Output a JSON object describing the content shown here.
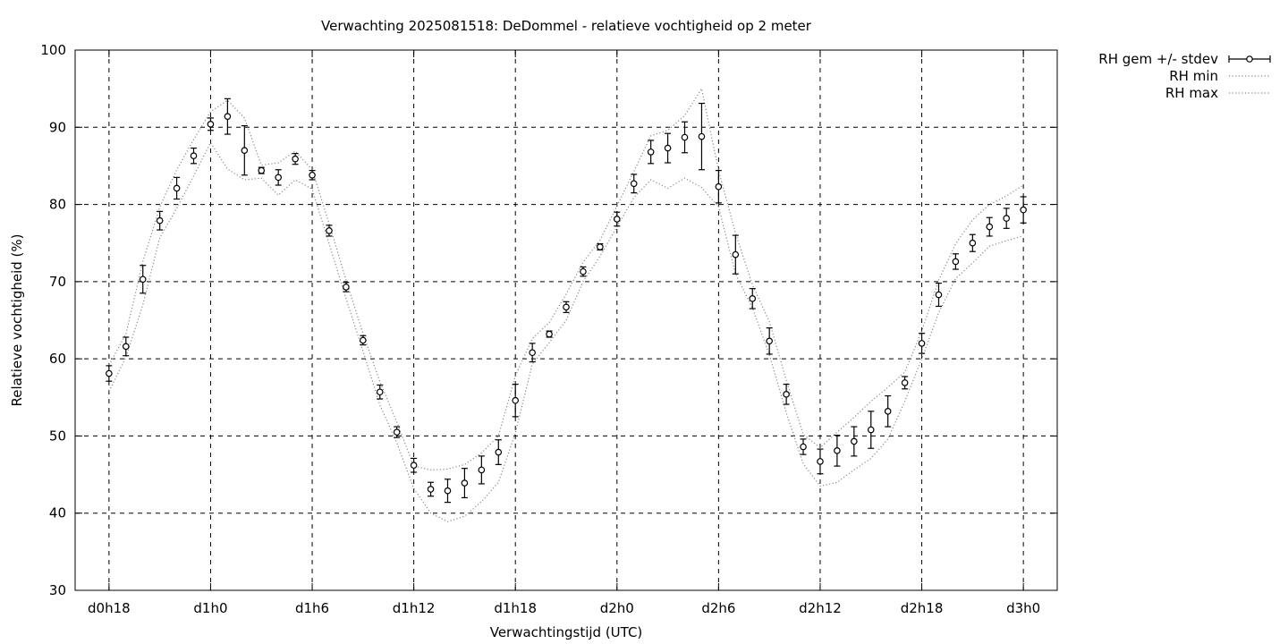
{
  "chart_data": {
    "type": "line",
    "title": "Verwachting 2025081518: DeDommel - relatieve vochtigheid op 2 meter",
    "xlabel": "Verwachtingstijd (UTC)",
    "ylabel": "Relatieve vochtigheid (%)",
    "x_unit": "forecast hours since 2025081518",
    "xlim": [
      -2,
      56
    ],
    "ylim": [
      30,
      100
    ],
    "yticks": [
      30,
      40,
      50,
      60,
      70,
      80,
      90,
      100
    ],
    "xticks": [
      {
        "x": 0,
        "label": "d0h18"
      },
      {
        "x": 6,
        "label": "d1h0"
      },
      {
        "x": 12,
        "label": "d1h6"
      },
      {
        "x": 18,
        "label": "d1h12"
      },
      {
        "x": 24,
        "label": "d1h18"
      },
      {
        "x": 30,
        "label": "d2h0"
      },
      {
        "x": 36,
        "label": "d2h6"
      },
      {
        "x": 42,
        "label": "d2h12"
      },
      {
        "x": 48,
        "label": "d2h18"
      },
      {
        "x": 54,
        "label": "d3h0"
      }
    ],
    "grid": true,
    "legend_position": "outside top-right",
    "series": [
      {
        "name": "RH gem +/- stdev",
        "style": "errorbars",
        "x": [
          0,
          1,
          2,
          3,
          4,
          5,
          6,
          7,
          8,
          9,
          10,
          11,
          12,
          13,
          14,
          15,
          16,
          17,
          18,
          19,
          20,
          21,
          22,
          23,
          24,
          25,
          26,
          27,
          28,
          29,
          30,
          31,
          32,
          33,
          34,
          35,
          36,
          37,
          38,
          39,
          40,
          41,
          42,
          43,
          44,
          45,
          46,
          47,
          48,
          49,
          50,
          51,
          52,
          53,
          54
        ],
        "mean": [
          58.1,
          61.6,
          70.3,
          77.9,
          82.1,
          86.3,
          90.4,
          91.4,
          87.0,
          84.4,
          83.5,
          85.9,
          83.8,
          76.6,
          69.3,
          62.4,
          55.7,
          50.5,
          46.2,
          43.1,
          42.9,
          43.9,
          45.6,
          47.9,
          54.6,
          60.8,
          63.2,
          66.7,
          71.3,
          74.5,
          78.1,
          82.7,
          86.8,
          87.3,
          88.7,
          88.8,
          82.3,
          73.5,
          67.8,
          62.3,
          55.4,
          48.6,
          46.7,
          48.1,
          49.3,
          50.8,
          53.2,
          56.9,
          62.0,
          68.3,
          72.6,
          75.0,
          77.1,
          78.2,
          79.3
        ],
        "stdev": [
          1.0,
          1.2,
          1.8,
          1.2,
          1.4,
          1.0,
          0.8,
          2.3,
          3.2,
          0.4,
          1.0,
          0.7,
          0.6,
          0.7,
          0.6,
          0.6,
          0.9,
          0.7,
          0.9,
          0.9,
          1.5,
          1.9,
          1.8,
          1.6,
          2.1,
          1.2,
          0.4,
          0.7,
          0.6,
          0.4,
          0.9,
          1.2,
          1.5,
          1.9,
          2.0,
          4.3,
          2.1,
          2.5,
          1.3,
          1.7,
          1.3,
          1.0,
          1.6,
          2.0,
          1.9,
          2.4,
          2.0,
          0.8,
          1.3,
          1.5,
          1.0,
          1.1,
          1.2,
          1.3,
          1.7
        ]
      },
      {
        "name": "RH min",
        "style": "dotted",
        "x": [
          0,
          1,
          2,
          3,
          4,
          5,
          6,
          7,
          8,
          9,
          10,
          11,
          12,
          13,
          14,
          15,
          16,
          17,
          18,
          19,
          20,
          21,
          22,
          23,
          24,
          25,
          26,
          27,
          28,
          29,
          30,
          31,
          32,
          33,
          34,
          35,
          36,
          37,
          38,
          39,
          40,
          41,
          42,
          43,
          44,
          45,
          46,
          47,
          48,
          49,
          50,
          51,
          52,
          53,
          54
        ],
        "values": [
          55.8,
          60.2,
          67.0,
          75.7,
          79.5,
          83.7,
          88.0,
          84.6,
          83.2,
          83.4,
          81.2,
          83.2,
          82.0,
          74.9,
          67.8,
          61.0,
          54.0,
          49.1,
          43.2,
          40.0,
          38.9,
          39.6,
          41.5,
          44.0,
          50.4,
          59.3,
          62.1,
          65.0,
          70.0,
          73.3,
          77.1,
          80.9,
          83.2,
          82.1,
          83.4,
          82.2,
          79.7,
          71.0,
          66.6,
          60.5,
          53.0,
          46.4,
          43.5,
          44.0,
          45.6,
          47.1,
          49.6,
          54.5,
          60.0,
          66.0,
          70.4,
          72.4,
          74.6,
          75.3,
          75.9
        ]
      },
      {
        "name": "RH max",
        "style": "dotted",
        "x": [
          0,
          1,
          2,
          3,
          4,
          5,
          6,
          7,
          8,
          9,
          10,
          11,
          12,
          13,
          14,
          15,
          16,
          17,
          18,
          19,
          20,
          21,
          22,
          23,
          24,
          25,
          26,
          27,
          28,
          29,
          30,
          31,
          32,
          33,
          34,
          35,
          36,
          37,
          38,
          39,
          40,
          41,
          42,
          43,
          44,
          45,
          46,
          47,
          48,
          49,
          50,
          51,
          52,
          53,
          54
        ],
        "values": [
          59.2,
          63.2,
          72.6,
          79.7,
          84.5,
          88.4,
          92.0,
          93.5,
          91.2,
          85.1,
          85.4,
          86.9,
          84.5,
          77.5,
          70.2,
          63.3,
          57.0,
          51.8,
          46.1,
          45.6,
          45.7,
          46.3,
          47.8,
          50.0,
          57.8,
          62.6,
          64.7,
          68.4,
          72.5,
          75.4,
          79.8,
          84.3,
          88.9,
          89.6,
          91.5,
          95.0,
          84.4,
          76.3,
          69.6,
          64.8,
          57.2,
          50.2,
          48.5,
          50.5,
          52.4,
          54.5,
          56.3,
          58.3,
          63.6,
          70.2,
          74.9,
          78.0,
          80.0,
          81.1,
          82.5
        ]
      }
    ]
  }
}
